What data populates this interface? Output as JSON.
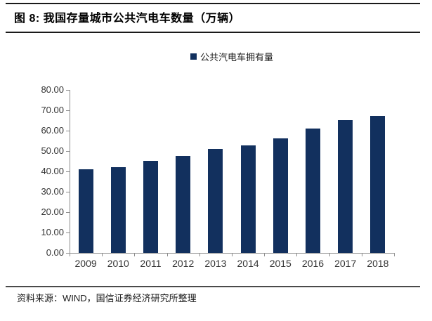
{
  "header": {
    "title": "图 8: 我国存量城市公共汽电车数量（万辆）"
  },
  "chart_data": {
    "type": "bar",
    "title": "图 8: 我国存量城市公共汽电车数量（万辆）",
    "categories": [
      "2009",
      "2010",
      "2011",
      "2012",
      "2013",
      "2014",
      "2015",
      "2016",
      "2017",
      "2018"
    ],
    "series": [
      {
        "name": "公共汽电车拥有量",
        "values": [
          41.2,
          42.1,
          45.2,
          47.6,
          51.0,
          52.9,
          56.2,
          60.9,
          65.1,
          67.3
        ]
      }
    ],
    "unit": "万辆",
    "xlabel": "",
    "ylabel": "",
    "ylim": [
      0,
      80
    ],
    "ytick_step": 10,
    "ytick_labels": [
      "0.00",
      "10.00",
      "20.00",
      "30.00",
      "40.00",
      "50.00",
      "60.00",
      "70.00",
      "80.00"
    ],
    "grid": false,
    "legend_position": "top-center",
    "bar_color": "#12305e",
    "axis_color": "#8c8c8c",
    "tick_text_color": "#333333"
  },
  "footer": {
    "source_label": "资料来源：WIND，国信证券经济研究所整理"
  }
}
